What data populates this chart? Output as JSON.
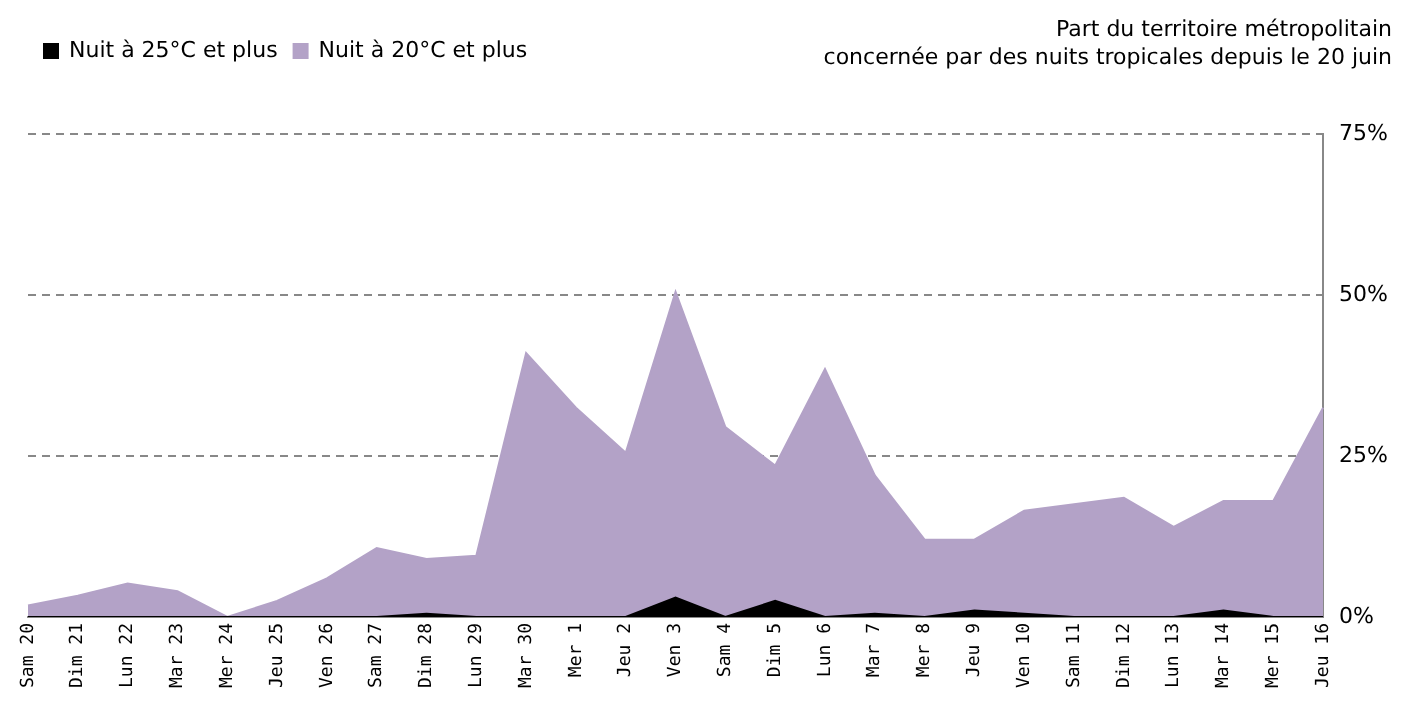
{
  "chart_data": {
    "type": "area",
    "title": "Part du territoire métropolitain\nconcernée par des nuits tropicales depuis le 20 juin",
    "categories": [
      "Sam 20",
      "Dim 21",
      "Lun 22",
      "Mar 23",
      "Mer 24",
      "Jeu 25",
      "Ven 26",
      "Sam 27",
      "Dim 28",
      "Lun 29",
      "Mar 30",
      "Mer 1",
      "Jeu 2",
      "Ven 3",
      "Sam 4",
      "Dim 5",
      "Lun 6",
      "Mar 7",
      "Mer 8",
      "Jeu 9",
      "Ven 10",
      "Sam 11",
      "Dim 12",
      "Lun 13",
      "Mar 14",
      "Mer 15",
      "Jeu 16"
    ],
    "series": [
      {
        "name": "Nuit à 20°C et plus",
        "color": "#b3a2c7",
        "values": [
          1.8,
          3.3,
          5.2,
          4,
          0,
          2.5,
          6,
          10.7,
          9,
          9.5,
          41,
          32.5,
          25.5,
          50.5,
          29.5,
          23.5,
          38.5,
          22,
          12,
          12,
          16.5,
          17.5,
          18.5,
          14,
          18,
          18,
          32.5
        ]
      },
      {
        "name": "Nuit à 25°C et plus",
        "color": "#000000",
        "values": [
          0,
          0,
          0,
          0,
          0,
          0,
          0,
          0,
          0.5,
          0,
          0,
          0,
          0,
          3,
          0,
          2.5,
          0,
          0.5,
          0,
          1,
          0.5,
          0,
          0,
          0,
          1,
          0,
          0
        ]
      }
    ],
    "ylim": [
      0,
      75
    ],
    "yticks": [
      {
        "value": 0,
        "label": "0%"
      },
      {
        "value": 25,
        "label": "25%"
      },
      {
        "value": 50,
        "label": "50%"
      },
      {
        "value": 75,
        "label": "75%"
      }
    ],
    "grid": "y",
    "legend": "top left"
  }
}
